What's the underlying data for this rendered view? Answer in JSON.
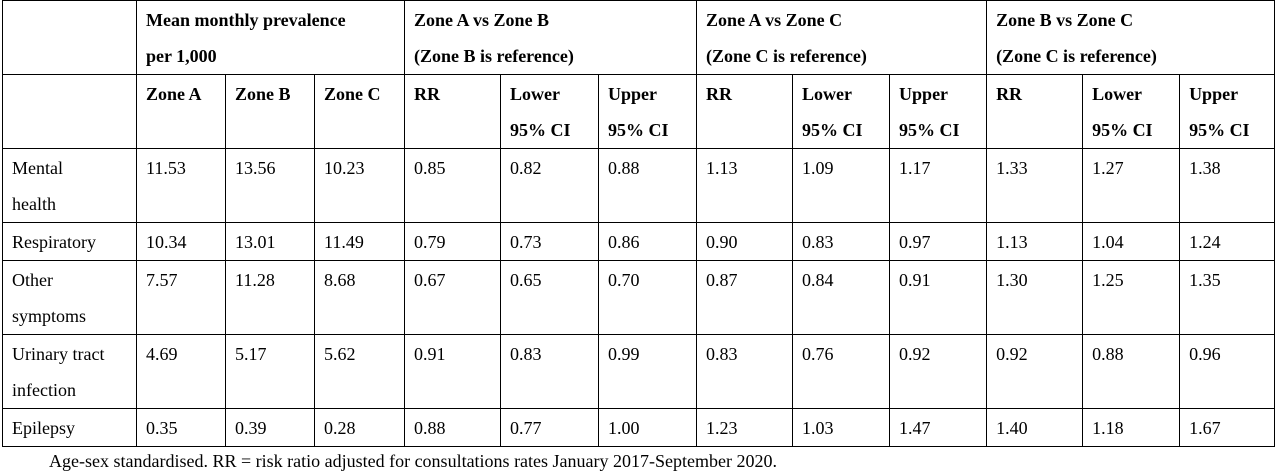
{
  "groups": [
    {
      "line1": "Mean monthly prevalence",
      "line2": "per 1,000"
    },
    {
      "line1": "Zone A vs Zone B",
      "line2": "(Zone B is reference)"
    },
    {
      "line1": "Zone A vs Zone C",
      "line2": "(Zone C is reference)"
    },
    {
      "line1": "Zone B vs Zone C",
      "line2": "(Zone C is reference)"
    }
  ],
  "subheaders": [
    {
      "l1": "Zone A",
      "l2": ""
    },
    {
      "l1": "Zone B",
      "l2": ""
    },
    {
      "l1": "Zone C",
      "l2": ""
    },
    {
      "l1": "RR",
      "l2": ""
    },
    {
      "l1": "Lower",
      "l2": "95% CI"
    },
    {
      "l1": "Upper",
      "l2": "95% CI"
    },
    {
      "l1": "RR",
      "l2": ""
    },
    {
      "l1": "Lower",
      "l2": "95% CI"
    },
    {
      "l1": "Upper",
      "l2": "95% CI"
    },
    {
      "l1": "RR",
      "l2": ""
    },
    {
      "l1": "Lower",
      "l2": "95% CI"
    },
    {
      "l1": "Upper",
      "l2": "95% CI"
    }
  ],
  "rows": [
    {
      "l1": "Mental",
      "l2": "health",
      "cells": [
        "11.53",
        "13.56",
        "10.23",
        "0.85",
        "0.82",
        "0.88",
        "1.13",
        "1.09",
        "1.17",
        "1.33",
        "1.27",
        "1.38"
      ]
    },
    {
      "l1": "Respiratory",
      "l2": "",
      "cells": [
        "10.34",
        "13.01",
        "11.49",
        "0.79",
        "0.73",
        "0.86",
        "0.90",
        "0.83",
        "0.97",
        "1.13",
        "1.04",
        "1.24"
      ]
    },
    {
      "l1": "Other",
      "l2": "symptoms",
      "cells": [
        "7.57",
        "11.28",
        "8.68",
        "0.67",
        "0.65",
        "0.70",
        "0.87",
        "0.84",
        "0.91",
        "1.30",
        "1.25",
        "1.35"
      ]
    },
    {
      "l1": "Urinary tract",
      "l2": "infection",
      "cells": [
        "4.69",
        "5.17",
        "5.62",
        "0.91",
        "0.83",
        "0.99",
        "0.83",
        "0.76",
        "0.92",
        "0.92",
        "0.88",
        "0.96"
      ]
    },
    {
      "l1": "Epilepsy",
      "l2": "",
      "cells": [
        "0.35",
        "0.39",
        "0.28",
        "0.88",
        "0.77",
        "1.00",
        "1.23",
        "1.03",
        "1.47",
        "1.40",
        "1.18",
        "1.67"
      ]
    }
  ],
  "footnote": "Age-sex standardised. RR = risk ratio adjusted for consultations rates January 2017-September 2020."
}
